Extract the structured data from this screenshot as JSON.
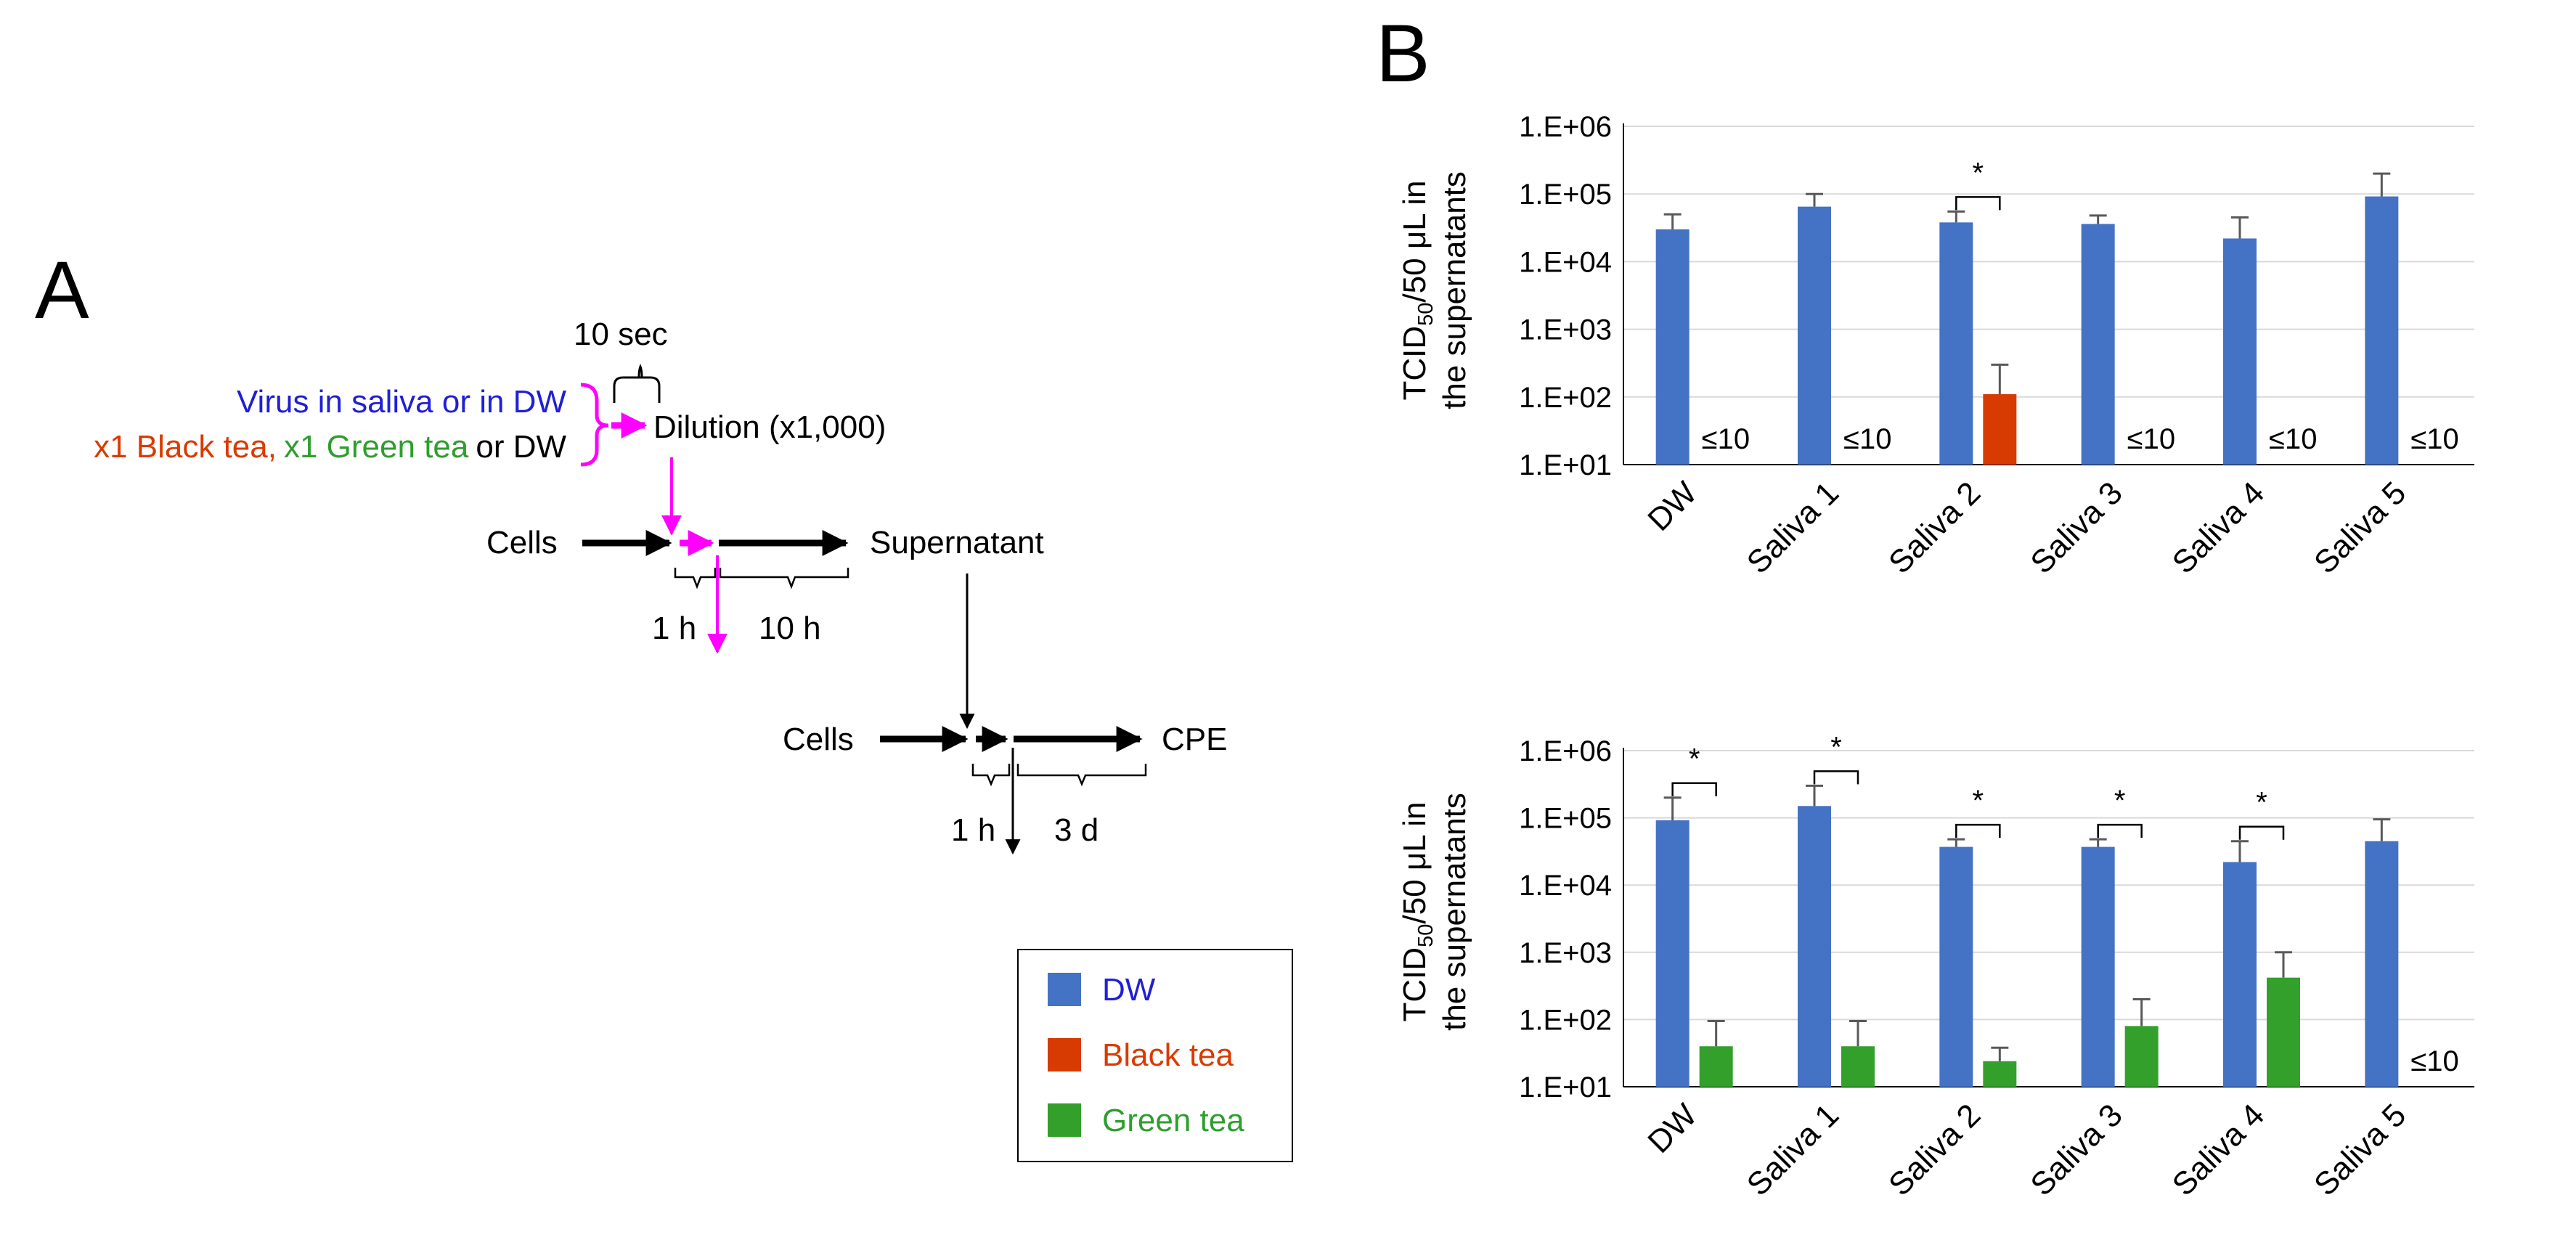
{
  "panel_a": {
    "label": "A",
    "ten_sec": "10 sec",
    "line1": "Virus in saliva or in DW",
    "line2_black": "x1 Black tea,",
    "line2_green": "x1 Green tea",
    "line2_or": "or DW",
    "dilution": "Dilution (x1,000)",
    "cells1": "Cells",
    "supernatant": "Supernatant",
    "one_h_1": "1 h",
    "ten_h": "10 h",
    "cells2": "Cells",
    "cpe": "CPE",
    "one_h_2": "1 h",
    "three_d": "3 d"
  },
  "legend": {
    "items": [
      {
        "label": "DW",
        "color": "#4472c4",
        "text_color": "#1f1fd6"
      },
      {
        "label": "Black tea",
        "color": "#d83b01",
        "text_color": "#d83b01"
      },
      {
        "label": "Green tea",
        "color": "#33a02c",
        "text_color": "#2e9e2e"
      }
    ]
  },
  "colors": {
    "dw": "#4472c4",
    "black_tea": "#d83b01",
    "green_tea": "#33a02c",
    "arrow_magenta": "#ff00ff"
  },
  "chart_data": [
    {
      "panel": "B",
      "type": "bar",
      "scale": "log10",
      "ylabel_main": "TCID",
      "ylabel_sub": "50",
      "ylabel_rest": "/50 μL in",
      "ylabel_line2": "the supernatants",
      "ylim": [
        10,
        1000000
      ],
      "yticks": [
        "1.E+01",
        "1.E+02",
        "1.E+03",
        "1.E+04",
        "1.E+05",
        "1.E+06"
      ],
      "categories": [
        "DW",
        "Saliva 1",
        "Saliva 2",
        "Saliva 3",
        "Saliva 4",
        "Saliva 5"
      ],
      "series": [
        {
          "name": "DW",
          "color": "#4472c4",
          "values": [
            30000,
            65000,
            38000,
            36000,
            22000,
            92000
          ],
          "err_upper": [
            50000,
            100000,
            55000,
            48000,
            45000,
            200000
          ]
        },
        {
          "name": "Black tea",
          "color": "#d83b01",
          "values": [
            null,
            null,
            110,
            null,
            null,
            null
          ],
          "err_upper": [
            null,
            null,
            300,
            null,
            null,
            null
          ]
        }
      ],
      "below_limit_label": "≤10",
      "below_limit": [
        true,
        true,
        false,
        true,
        true,
        true
      ],
      "significance": [
        false,
        false,
        true,
        false,
        false,
        false
      ],
      "sig_mark": "*"
    },
    {
      "type": "bar",
      "scale": "log10",
      "ylabel_main": "TCID",
      "ylabel_sub": "50",
      "ylabel_rest": "/50 μL in",
      "ylabel_line2": "the supernatants",
      "ylim": [
        10,
        1000000
      ],
      "yticks": [
        "1.E+01",
        "1.E+02",
        "1.E+03",
        "1.E+04",
        "1.E+05",
        "1.E+06"
      ],
      "categories": [
        "DW",
        "Saliva 1",
        "Saliva 2",
        "Saliva 3",
        "Saliva 4",
        "Saliva 5"
      ],
      "series": [
        {
          "name": "DW",
          "color": "#4472c4",
          "values": [
            92000,
            150000,
            37000,
            37000,
            22000,
            45000
          ],
          "err_upper": [
            200000,
            300000,
            48000,
            48000,
            45000,
            95000
          ]
        },
        {
          "name": "Green tea",
          "color": "#33a02c",
          "values": [
            40,
            40,
            24,
            80,
            420,
            null
          ],
          "err_upper": [
            95,
            95,
            38,
            200,
            1000,
            null
          ]
        }
      ],
      "below_limit_label": "≤10",
      "below_limit": [
        false,
        false,
        false,
        false,
        false,
        true
      ],
      "significance": [
        true,
        true,
        true,
        true,
        true,
        false
      ],
      "sig_mark": "*"
    }
  ]
}
